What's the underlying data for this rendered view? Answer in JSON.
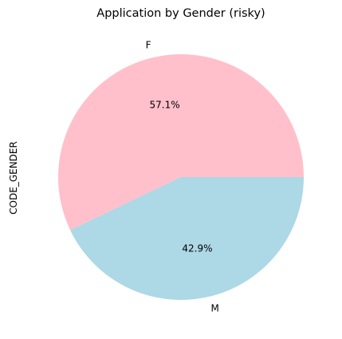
{
  "chart_data": {
    "type": "pie",
    "title": "Application by Gender (risky)",
    "ylabel": "CODE_GENDER",
    "xlabel": "",
    "slices": [
      {
        "label": "F",
        "value": 57.1,
        "pct_label": "57.1%",
        "color": "#ffc0cb"
      },
      {
        "label": "M",
        "value": 42.9,
        "pct_label": "42.9%",
        "color": "#add8e6"
      }
    ],
    "start_angle": 0,
    "direction": "counterclockwise",
    "legend": "none"
  }
}
